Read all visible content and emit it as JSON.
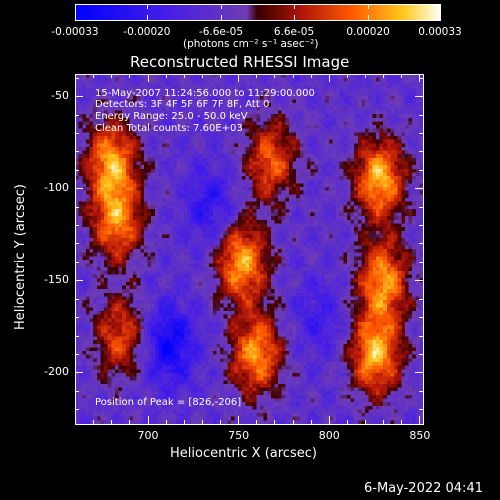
{
  "chart_data": {
    "type": "heatmap",
    "title": "Reconstructed RHESSI Image",
    "xlabel": "Heliocentric X (arcsec)",
    "ylabel": "Heliocentric Y (arcsec)",
    "xlim": [
      660,
      852
    ],
    "ylim": [
      -228,
      -38
    ],
    "xticks": [
      700,
      750,
      800,
      850
    ],
    "yticks": [
      -50,
      -100,
      -150,
      -200
    ],
    "colorbar": {
      "ticks": [
        "-0.00033",
        "-0.00020",
        "-6.6e-05",
        "6.6e-05",
        "0.00020",
        "0.00033"
      ],
      "tick_values": [
        -0.00033,
        -0.0002,
        -6.6e-05,
        6.6e-05,
        0.0002,
        0.00033
      ],
      "range": [
        -0.00033,
        0.00033
      ],
      "units": "(photons cm⁻² s⁻¹ asec⁻²)",
      "colormap": "blue-purple-red-yellow-white"
    },
    "annotations": {
      "time_range": "15-May-2007 11:24:56.000 to 11:29:00.000",
      "detectors": "Detectors: 3F 4F 5F 6F 7F 8F, Att 0",
      "energy": "Energy Range: 25.0 - 50.0 keV",
      "clean": "Clean    Total counts: 7.60E+03",
      "peak": "Position of Peak = [826,-206]"
    },
    "peak_position": [
      826,
      -206
    ],
    "bright_regions": [
      {
        "x": 680,
        "y": -85,
        "level": 0.3
      },
      {
        "x": 683,
        "y": -118,
        "level": 0.28
      },
      {
        "x": 685,
        "y": -180,
        "level": 0.22
      },
      {
        "x": 752,
        "y": -140,
        "level": 0.32
      },
      {
        "x": 768,
        "y": -85,
        "level": 0.24
      },
      {
        "x": 760,
        "y": -190,
        "level": 0.3
      },
      {
        "x": 828,
        "y": -95,
        "level": 0.33
      },
      {
        "x": 830,
        "y": -150,
        "level": 0.3
      },
      {
        "x": 826,
        "y": -190,
        "level": 0.33
      }
    ],
    "dark_regions": [
      {
        "x": 712,
        "y": -185,
        "level": -0.22
      },
      {
        "x": 735,
        "y": -110,
        "level": -0.14
      },
      {
        "x": 795,
        "y": -170,
        "level": -0.1
      }
    ],
    "grid": false
  },
  "footer": {
    "timestamp": "6-May-2022 04:41"
  },
  "colors": {
    "background": "#000000",
    "axis": "#ffffff",
    "text": "#ffffff"
  }
}
